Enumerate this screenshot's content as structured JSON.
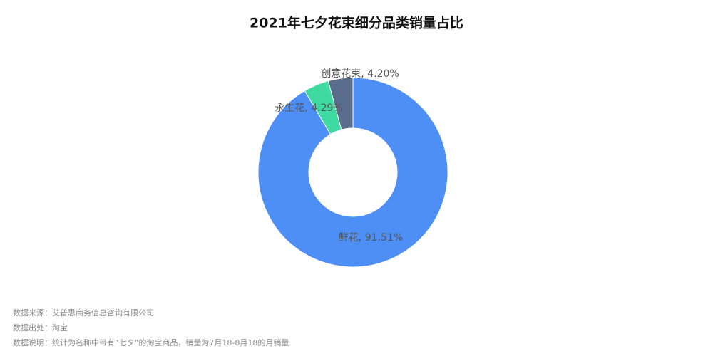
{
  "chart_data": {
    "type": "donut",
    "title": "2021年七夕花束细分品类销量占比",
    "values": [
      91.51,
      4.29,
      4.2
    ],
    "value_labels": [
      "鲜花, 91.51%",
      "永生花, 4.29%",
      "创意花束, 4.20%"
    ],
    "colors": [
      "#4e8ff5",
      "#3fd9a2",
      "#5b6d8c"
    ]
  },
  "footnotes": [
    "数据来源：艾普思商务信息咨询有限公司",
    "数据出处：淘宝",
    "数据说明：统计为名称中带有“七夕”的淘宝商品，销量为7月18-8月18的月销量"
  ]
}
